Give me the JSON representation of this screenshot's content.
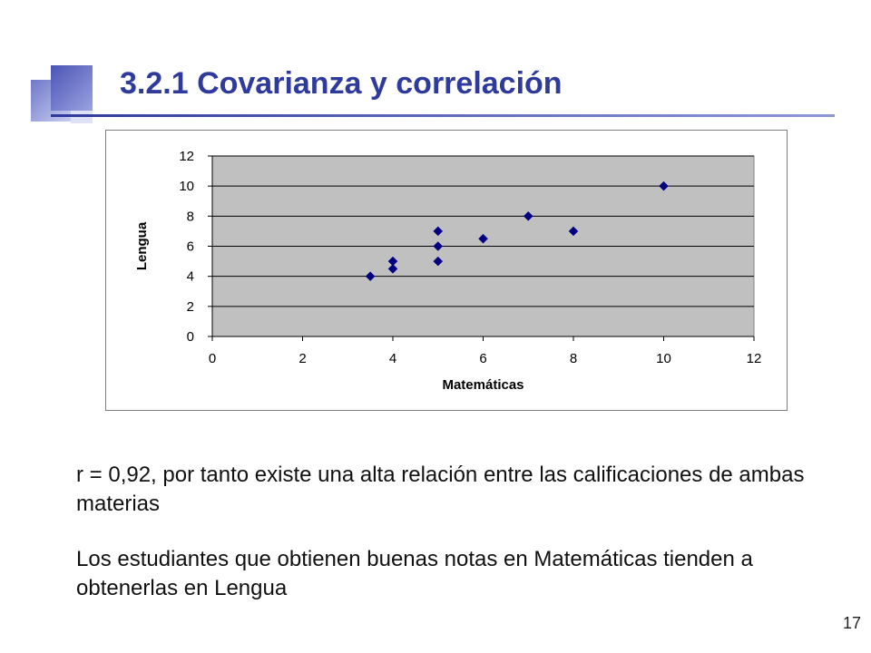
{
  "slide": {
    "title": "3.2.1 Covarianza y correlación",
    "paragraphs": [
      "r = 0,92, por tanto existe una alta relación entre las calificaciones de ambas materias",
      "Los estudiantes que obtienen buenas notas en Matemáticas tienden a obtenerlas en Lengua"
    ],
    "page_number": "17",
    "accent_color": "#2e3a9c"
  },
  "chart_data": {
    "type": "scatter",
    "xlabel": "Matemáticas",
    "ylabel": "Lengua",
    "xlim": [
      0,
      12
    ],
    "ylim": [
      0,
      12
    ],
    "xticks": [
      "0",
      "2",
      "4",
      "6",
      "8",
      "10",
      "12"
    ],
    "yticks": [
      "0",
      "2",
      "4",
      "6",
      "8",
      "10",
      "12"
    ],
    "grid": "horizontal",
    "plot_background": "#c0c0c0",
    "marker_color": "#000080",
    "marker": "diamond",
    "points": [
      {
        "x": 3.5,
        "y": 4
      },
      {
        "x": 4,
        "y": 4.5
      },
      {
        "x": 4,
        "y": 5
      },
      {
        "x": 5,
        "y": 5
      },
      {
        "x": 5,
        "y": 6
      },
      {
        "x": 5,
        "y": 7
      },
      {
        "x": 6,
        "y": 6.5
      },
      {
        "x": 7,
        "y": 8
      },
      {
        "x": 8,
        "y": 7
      },
      {
        "x": 10,
        "y": 10
      }
    ]
  }
}
